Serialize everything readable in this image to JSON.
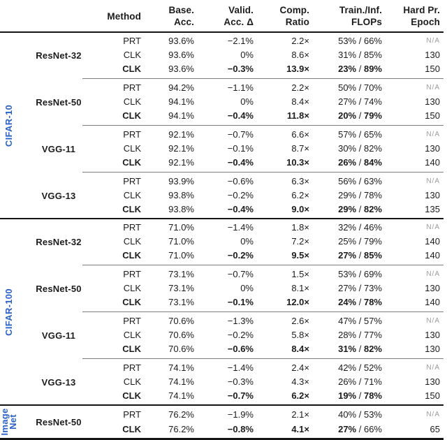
{
  "colors": {
    "dataset_label_blue": "#2b62c9",
    "na_gray": "#9b9b9b",
    "rule_black": "#141414",
    "thin_rule_gray": "#7d7d7d"
  },
  "header": {
    "columns": [
      {
        "line1": "Method",
        "line2": ""
      },
      {
        "line1": "Base.",
        "line2": "Acc."
      },
      {
        "line1": "Valid.",
        "line2": "Acc. Δ"
      },
      {
        "line1": "Comp.",
        "line2": "Ratio"
      },
      {
        "line1": "Train./Inf.",
        "line2": "FLOPs"
      },
      {
        "line1": "Hard Pr.",
        "line2": "Epoch"
      }
    ]
  },
  "sections": [
    {
      "dataset": "CIFAR-10",
      "label_lines": [
        "CIFAR-10"
      ],
      "groups": [
        {
          "model": "ResNet-32",
          "rows": [
            {
              "method": "PRT",
              "base": "93.6%",
              "valid": "−2.1%",
              "ratio": "2.2×",
              "flops_train": "53%",
              "flops_inf": "66%",
              "epoch": "N/A",
              "bold": false
            },
            {
              "method": "CLK",
              "base": "93.6%",
              "valid": "0%",
              "ratio": "8.6×",
              "flops_train": "31%",
              "flops_inf": "85%",
              "epoch": "130",
              "bold": false
            },
            {
              "method": "CLK",
              "base": "93.6%",
              "valid": "−0.3%",
              "ratio": "13.9×",
              "flops_train": "23%",
              "flops_inf": "89%",
              "epoch": "150",
              "bold": true
            }
          ]
        },
        {
          "model": "ResNet-50",
          "rows": [
            {
              "method": "PRT",
              "base": "94.2%",
              "valid": "−1.1%",
              "ratio": "2.2×",
              "flops_train": "50%",
              "flops_inf": "70%",
              "epoch": "N/A",
              "bold": false
            },
            {
              "method": "CLK",
              "base": "94.1%",
              "valid": "0%",
              "ratio": "8.4×",
              "flops_train": "27%",
              "flops_inf": "74%",
              "epoch": "130",
              "bold": false
            },
            {
              "method": "CLK",
              "base": "94.1%",
              "valid": "−0.4%",
              "ratio": "11.8×",
              "flops_train": "20%",
              "flops_inf": "79%",
              "epoch": "150",
              "bold": true
            }
          ]
        },
        {
          "model": "VGG-11",
          "rows": [
            {
              "method": "PRT",
              "base": "92.1%",
              "valid": "−0.7%",
              "ratio": "6.6×",
              "flops_train": "57%",
              "flops_inf": "65%",
              "epoch": "N/A",
              "bold": false
            },
            {
              "method": "CLK",
              "base": "92.1%",
              "valid": "−0.1%",
              "ratio": "8.7×",
              "flops_train": "30%",
              "flops_inf": "82%",
              "epoch": "130",
              "bold": false
            },
            {
              "method": "CLK",
              "base": "92.1%",
              "valid": "−0.4%",
              "ratio": "10.3×",
              "flops_train": "26%",
              "flops_inf": "84%",
              "epoch": "140",
              "bold": true
            }
          ]
        },
        {
          "model": "VGG-13",
          "rows": [
            {
              "method": "PRT",
              "base": "93.9%",
              "valid": "−0.6%",
              "ratio": "6.3×",
              "flops_train": "56%",
              "flops_inf": "63%",
              "epoch": "N/A",
              "bold": false
            },
            {
              "method": "CLK",
              "base": "93.8%",
              "valid": "−0.2%",
              "ratio": "6.2×",
              "flops_train": "29%",
              "flops_inf": "78%",
              "epoch": "130",
              "bold": false
            },
            {
              "method": "CLK",
              "base": "93.8%",
              "valid": "−0.4%",
              "ratio": "9.0×",
              "flops_train": "29%",
              "flops_inf": "82%",
              "epoch": "135",
              "bold": true
            }
          ]
        }
      ]
    },
    {
      "dataset": "CIFAR-100",
      "label_lines": [
        "CIFAR-100"
      ],
      "groups": [
        {
          "model": "ResNet-32",
          "rows": [
            {
              "method": "PRT",
              "base": "71.0%",
              "valid": "−1.4%",
              "ratio": "1.8×",
              "flops_train": "32%",
              "flops_inf": "46%",
              "epoch": "N/A",
              "bold": false
            },
            {
              "method": "CLK",
              "base": "71.0%",
              "valid": "0%",
              "ratio": "7.2×",
              "flops_train": "25%",
              "flops_inf": "79%",
              "epoch": "140",
              "bold": false
            },
            {
              "method": "CLK",
              "base": "71.0%",
              "valid": "−0.2%",
              "ratio": "9.5×",
              "flops_train": "27%",
              "flops_inf": "85%",
              "epoch": "140",
              "bold": true
            }
          ]
        },
        {
          "model": "ResNet-50",
          "rows": [
            {
              "method": "PRT",
              "base": "73.1%",
              "valid": "−0.7%",
              "ratio": "1.5×",
              "flops_train": "53%",
              "flops_inf": "69%",
              "epoch": "N/A",
              "bold": false
            },
            {
              "method": "CLK",
              "base": "73.1%",
              "valid": "0%",
              "ratio": "8.1×",
              "flops_train": "27%",
              "flops_inf": "73%",
              "epoch": "130",
              "bold": false
            },
            {
              "method": "CLK",
              "base": "73.1%",
              "valid": "−0.1%",
              "ratio": "12.0×",
              "flops_train": "24%",
              "flops_inf": "78%",
              "epoch": "140",
              "bold": true
            }
          ]
        },
        {
          "model": "VGG-11",
          "rows": [
            {
              "method": "PRT",
              "base": "70.6%",
              "valid": "−1.3%",
              "ratio": "2.6×",
              "flops_train": "47%",
              "flops_inf": "57%",
              "epoch": "N/A",
              "bold": false
            },
            {
              "method": "CLK",
              "base": "70.6%",
              "valid": "−0.2%",
              "ratio": "5.8×",
              "flops_train": "28%",
              "flops_inf": "77%",
              "epoch": "130",
              "bold": false
            },
            {
              "method": "CLK",
              "base": "70.6%",
              "valid": "−0.6%",
              "ratio": "8.4×",
              "flops_train": "31%",
              "flops_inf": "82%",
              "epoch": "130",
              "bold": true
            }
          ]
        },
        {
          "model": "VGG-13",
          "rows": [
            {
              "method": "PRT",
              "base": "74.1%",
              "valid": "−1.4%",
              "ratio": "2.4×",
              "flops_train": "42%",
              "flops_inf": "52%",
              "epoch": "N/A",
              "bold": false
            },
            {
              "method": "CLK",
              "base": "74.1%",
              "valid": "−0.3%",
              "ratio": "4.3×",
              "flops_train": "26%",
              "flops_inf": "71%",
              "epoch": "130",
              "bold": false
            },
            {
              "method": "CLK",
              "base": "74.1%",
              "valid": "−0.7%",
              "ratio": "6.2×",
              "flops_train": "19%",
              "flops_inf": "78%",
              "epoch": "150",
              "bold": true
            }
          ]
        }
      ]
    },
    {
      "dataset": "ImageNet",
      "label_lines": [
        "Image",
        "Net"
      ],
      "groups": [
        {
          "model": "ResNet-50",
          "rows": [
            {
              "method": "PRT",
              "base": "76.2%",
              "valid": "−1.9%",
              "ratio": "2.1×",
              "flops_train": "40%",
              "flops_inf": "53%",
              "epoch": "N/A",
              "bold": false
            },
            {
              "method": "CLK",
              "base": "76.2%",
              "valid": "−0.8%",
              "ratio": "4.1×",
              "flops_train": "27%",
              "flops_inf": "66%",
              "epoch": "65",
              "bold": true,
              "flops_inf_bold": false
            }
          ]
        }
      ]
    }
  ]
}
